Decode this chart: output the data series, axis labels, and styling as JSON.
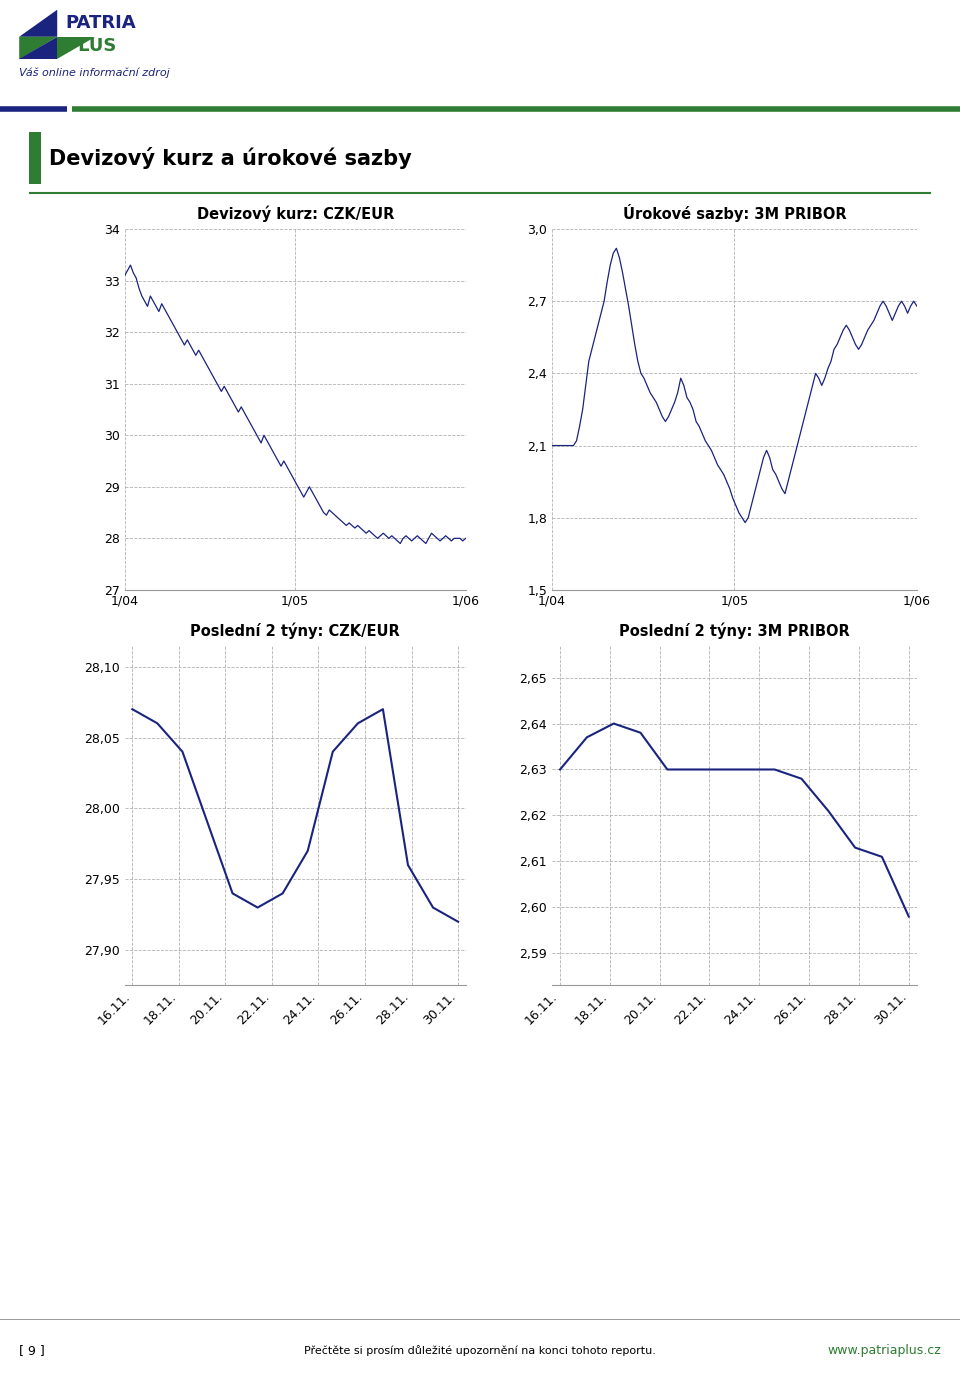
{
  "page_title": "Devizový kurz a úrokové sazby",
  "header_text": "Váš online informační zdroj",
  "footer_text": "Přečtěte si prosím důležité upozornění na konci tohoto reportu.",
  "page_num": "[ 9 ]",
  "website": "www.patriaplus.cz",
  "chart1_title": "Devizový kurz: CZK/EUR",
  "chart1_yticks": [
    27,
    28,
    29,
    30,
    31,
    32,
    33,
    34
  ],
  "chart1_xticks": [
    "1/04",
    "1/05",
    "1/06"
  ],
  "chart1_ylim": [
    27,
    34
  ],
  "chart1_color": "#1a237e",
  "chart2_title": "Úrokové sazby: 3M PRIBOR",
  "chart2_yticks": [
    1.5,
    1.8,
    2.1,
    2.4,
    2.7,
    3.0
  ],
  "chart2_xticks": [
    "1/04",
    "1/05",
    "1/06"
  ],
  "chart2_ylim": [
    1.5,
    3.0
  ],
  "chart2_color": "#1a237e",
  "chart3_title": "Poslední 2 týny: CZK/EUR",
  "chart3_xticks": [
    "16.11.",
    "18.11.",
    "20.11.",
    "22.11.",
    "24.11.",
    "26.11.",
    "28.11.",
    "30.11."
  ],
  "chart3_yticks": [
    27.9,
    27.95,
    28.0,
    28.05,
    28.1
  ],
  "chart3_ylim": [
    27.875,
    28.115
  ],
  "chart3_color": "#1a237e",
  "chart4_title": "Poslední 2 týny: 3M PRIBOR",
  "chart4_xticks": [
    "16.11.",
    "18.11.",
    "20.11.",
    "22.11.",
    "24.11.",
    "26.11.",
    "28.11.",
    "30.11."
  ],
  "chart4_yticks": [
    2.59,
    2.6,
    2.61,
    2.62,
    2.63,
    2.64,
    2.65
  ],
  "chart4_ylim": [
    2.583,
    2.657
  ],
  "chart4_color": "#1a237e",
  "dark_navy": "#1a237e",
  "green_color": "#2e7d32",
  "grid_color": "#aaaaaa",
  "czk_eur_long_y": [
    33.1,
    33.2,
    33.3,
    33.15,
    33.05,
    32.85,
    32.7,
    32.6,
    32.5,
    32.7,
    32.6,
    32.5,
    32.4,
    32.55,
    32.45,
    32.35,
    32.25,
    32.15,
    32.05,
    31.95,
    31.85,
    31.75,
    31.85,
    31.75,
    31.65,
    31.55,
    31.65,
    31.55,
    31.45,
    31.35,
    31.25,
    31.15,
    31.05,
    30.95,
    30.85,
    30.95,
    30.85,
    30.75,
    30.65,
    30.55,
    30.45,
    30.55,
    30.45,
    30.35,
    30.25,
    30.15,
    30.05,
    29.95,
    29.85,
    30.0,
    29.9,
    29.8,
    29.7,
    29.6,
    29.5,
    29.4,
    29.5,
    29.4,
    29.3,
    29.2,
    29.1,
    29.0,
    28.9,
    28.8,
    28.9,
    29.0,
    28.9,
    28.8,
    28.7,
    28.6,
    28.5,
    28.45,
    28.55,
    28.5,
    28.45,
    28.4,
    28.35,
    28.3,
    28.25,
    28.3,
    28.25,
    28.2,
    28.25,
    28.2,
    28.15,
    28.1,
    28.15,
    28.1,
    28.05,
    28.0,
    28.05,
    28.1,
    28.05,
    28.0,
    28.05,
    28.0,
    27.95,
    27.9,
    28.0,
    28.05,
    28.0,
    27.95,
    28.0,
    28.05,
    28.0,
    27.95,
    27.9,
    28.0,
    28.1,
    28.05,
    28.0,
    27.95,
    28.0,
    28.05,
    28.0,
    27.95,
    28.0,
    28.0,
    28.0,
    27.95,
    28.0
  ],
  "pribor_long_y": [
    2.1,
    2.1,
    2.1,
    2.1,
    2.1,
    2.1,
    2.1,
    2.1,
    2.12,
    2.18,
    2.25,
    2.35,
    2.45,
    2.5,
    2.55,
    2.6,
    2.65,
    2.7,
    2.78,
    2.85,
    2.9,
    2.92,
    2.88,
    2.82,
    2.75,
    2.68,
    2.6,
    2.52,
    2.45,
    2.4,
    2.38,
    2.35,
    2.32,
    2.3,
    2.28,
    2.25,
    2.22,
    2.2,
    2.22,
    2.25,
    2.28,
    2.32,
    2.38,
    2.35,
    2.3,
    2.28,
    2.25,
    2.2,
    2.18,
    2.15,
    2.12,
    2.1,
    2.08,
    2.05,
    2.02,
    2.0,
    1.98,
    1.95,
    1.92,
    1.88,
    1.85,
    1.82,
    1.8,
    1.78,
    1.8,
    1.85,
    1.9,
    1.95,
    2.0,
    2.05,
    2.08,
    2.05,
    2.0,
    1.98,
    1.95,
    1.92,
    1.9,
    1.95,
    2.0,
    2.05,
    2.1,
    2.15,
    2.2,
    2.25,
    2.3,
    2.35,
    2.4,
    2.38,
    2.35,
    2.38,
    2.42,
    2.45,
    2.5,
    2.52,
    2.55,
    2.58,
    2.6,
    2.58,
    2.55,
    2.52,
    2.5,
    2.52,
    2.55,
    2.58,
    2.6,
    2.62,
    2.65,
    2.68,
    2.7,
    2.68,
    2.65,
    2.62,
    2.65,
    2.68,
    2.7,
    2.68,
    2.65,
    2.68,
    2.7,
    2.68
  ],
  "czk_eur_short_y": [
    28.07,
    28.06,
    28.04,
    27.99,
    27.94,
    27.93,
    27.94,
    27.97,
    28.04,
    28.06,
    28.07,
    27.96,
    27.93,
    27.92
  ],
  "pribor_short_y": [
    2.63,
    2.637,
    2.64,
    2.638,
    2.63,
    2.63,
    2.63,
    2.63,
    2.63,
    2.628,
    2.621,
    2.613,
    2.611,
    2.598
  ]
}
